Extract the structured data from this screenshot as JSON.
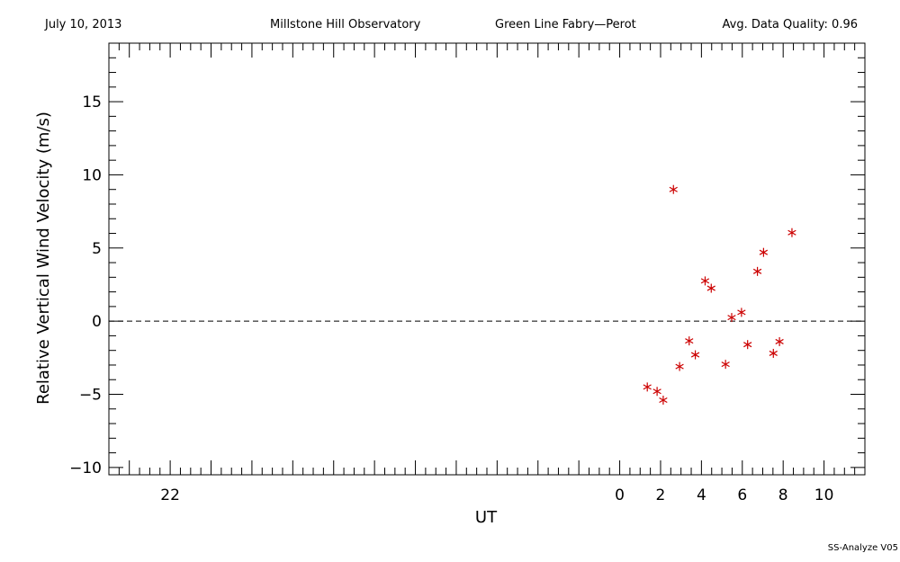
{
  "header": {
    "date": "July 10, 2013",
    "observatory": "Millstone Hill Observatory",
    "instrument": "Green Line Fabry—Perot",
    "quality": "Avg. Data Quality: 0.96"
  },
  "footer": {
    "software": "SS-Analyze V05"
  },
  "colors": {
    "points": "#cc0000",
    "axes": "#000000",
    "zero_line": "#000000"
  },
  "chart_data": {
    "type": "scatter",
    "xlabel": "UT",
    "ylabel": "Relative Vertical Wind Velocity (m/s)",
    "xlim": [
      -25,
      12
    ],
    "ylim": [
      -10.5,
      19
    ],
    "xticks": [
      -22,
      0,
      2,
      4,
      6,
      8,
      10
    ],
    "xtick_labels": [
      "22",
      "0",
      "2",
      "4",
      "6",
      "8",
      "10"
    ],
    "yticks": [
      -10,
      -5,
      0,
      5,
      10,
      15
    ],
    "ytick_labels": [
      "−10",
      "−5",
      "0",
      "5",
      "10",
      "15"
    ],
    "zero_line": true,
    "marker": "asterisk",
    "points": [
      {
        "x": 1.35,
        "y": -4.5
      },
      {
        "x": 1.83,
        "y": -4.8
      },
      {
        "x": 2.13,
        "y": -5.4
      },
      {
        "x": 2.63,
        "y": 9.0
      },
      {
        "x": 2.93,
        "y": -3.1
      },
      {
        "x": 3.4,
        "y": -1.35
      },
      {
        "x": 3.7,
        "y": -2.3
      },
      {
        "x": 4.18,
        "y": 2.75
      },
      {
        "x": 4.48,
        "y": 2.25
      },
      {
        "x": 5.18,
        "y": -2.95
      },
      {
        "x": 5.48,
        "y": 0.25
      },
      {
        "x": 5.96,
        "y": 0.6
      },
      {
        "x": 6.26,
        "y": -1.6
      },
      {
        "x": 6.74,
        "y": 3.4
      },
      {
        "x": 7.04,
        "y": 4.7
      },
      {
        "x": 7.52,
        "y": -2.2
      },
      {
        "x": 7.82,
        "y": -1.4
      },
      {
        "x": 8.43,
        "y": 6.05
      }
    ]
  }
}
